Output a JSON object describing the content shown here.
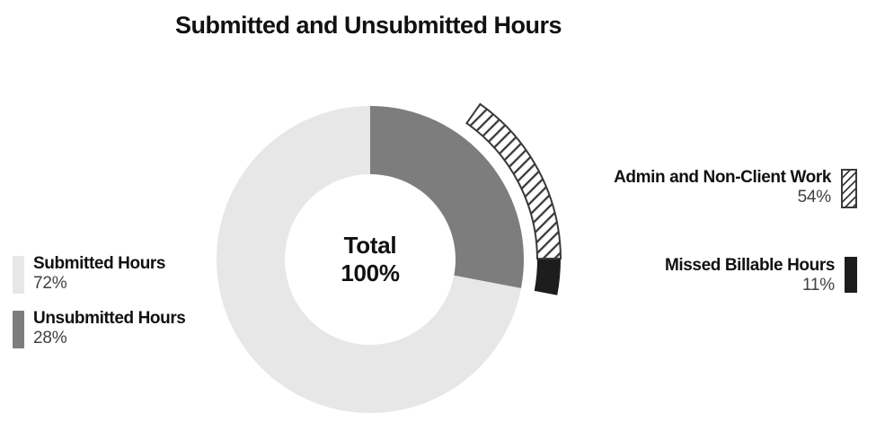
{
  "chart_data": {
    "type": "donut",
    "title": "Submitted and Unsubmitted Hours",
    "center_label": {
      "line1": "Total",
      "line2": "100%"
    },
    "series": [
      {
        "name": "Submitted Hours",
        "value": 72,
        "color": "#e7e7e7"
      },
      {
        "name": "Unsubmitted Hours",
        "value": 28,
        "color": "#7d7d7d"
      }
    ],
    "outer_ring": {
      "parent": "Unsubmitted Hours",
      "anchor": "end-of-parent-arc",
      "values_are_percent_of": "parent arc sweep",
      "segments": [
        {
          "name": "Admin and Non-Client Work",
          "value": 54,
          "fill": "hatch"
        },
        {
          "name": "Missed Billable Hours",
          "value": 11,
          "fill": "#1d1d1d"
        }
      ]
    },
    "start_angle_deg": 0,
    "direction": "clockwise",
    "legend_position": "left and right",
    "colors": {
      "hatch_line": "#3a3a3a",
      "background": "#ffffff"
    }
  },
  "legend_left": {
    "items": [
      {
        "label": "Submitted Hours",
        "value": "72%",
        "swatch": "#e7e7e7"
      },
      {
        "label": "Unsubmitted Hours",
        "value": "28%",
        "swatch": "#7d7d7d"
      }
    ]
  },
  "legend_right": {
    "items": [
      {
        "label": "Admin and Non-Client Work",
        "value": "54%",
        "swatch": "hatch"
      },
      {
        "label": "Missed Billable Hours",
        "value": "11%",
        "swatch": "#1d1d1d"
      }
    ]
  }
}
